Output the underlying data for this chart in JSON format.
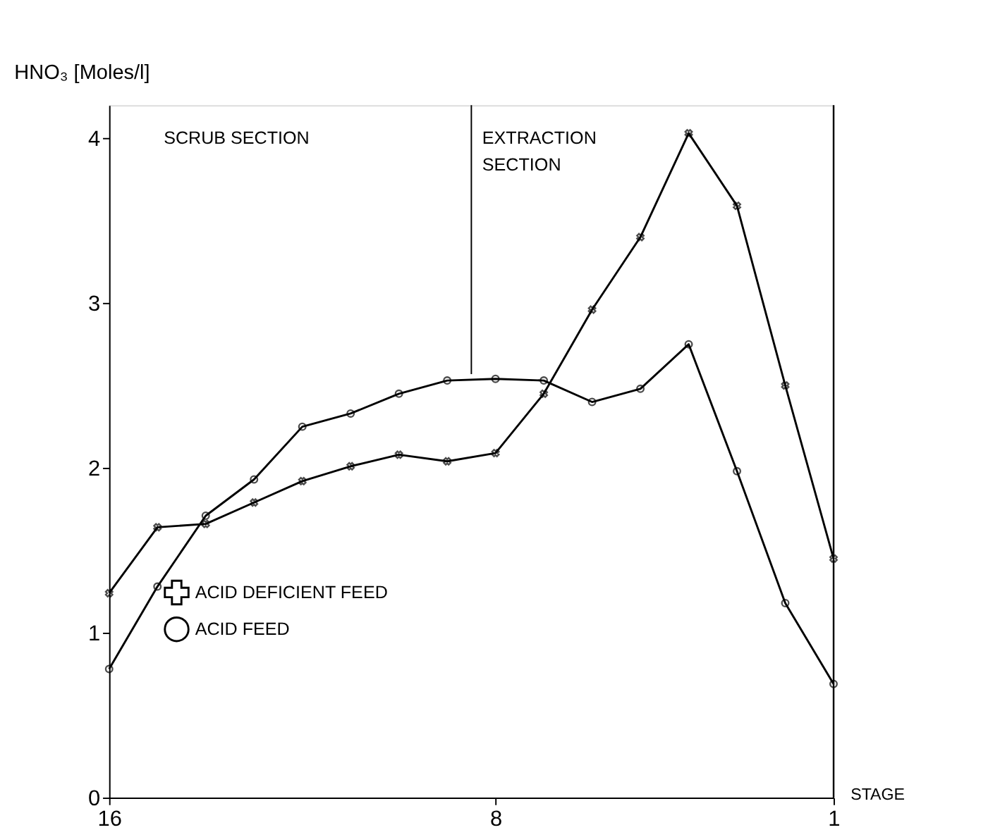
{
  "chart_data": {
    "type": "line",
    "xlabel": "STAGE",
    "ylabel": "HNO₃ [Moles/l]",
    "x": [
      16,
      15,
      14,
      13,
      12,
      11,
      10,
      9,
      8,
      7,
      6,
      5,
      4,
      3,
      2,
      1
    ],
    "series": [
      {
        "name": "ACID DEFICIENT FEED",
        "color": "#000000",
        "marker": "cross",
        "values": [
          1.24,
          1.64,
          1.66,
          1.79,
          1.92,
          2.01,
          2.08,
          2.04,
          2.09,
          2.45,
          2.96,
          3.4,
          4.03,
          3.59,
          2.5,
          1.45
        ]
      },
      {
        "name": "ACID FEED",
        "color": "#000000",
        "marker": "circle",
        "values": [
          0.78,
          1.28,
          1.71,
          1.93,
          2.25,
          2.33,
          2.45,
          2.53,
          2.54,
          2.53,
          2.4,
          2.48,
          2.75,
          1.98,
          1.18,
          0.69
        ]
      }
    ],
    "xlim": [
      16,
      1
    ],
    "xticks": [
      16,
      8,
      1
    ],
    "ylim": [
      0,
      4.2
    ],
    "yticks": [
      0,
      1,
      2,
      3,
      4
    ],
    "ref_lines": [
      {
        "axis": "x",
        "value": 8.5
      }
    ],
    "annotations": [
      "SCRUB SECTION",
      "EXTRACTION\nSECTION"
    ],
    "legend": "bottom left",
    "grid": false,
    "line_style": "solid"
  }
}
